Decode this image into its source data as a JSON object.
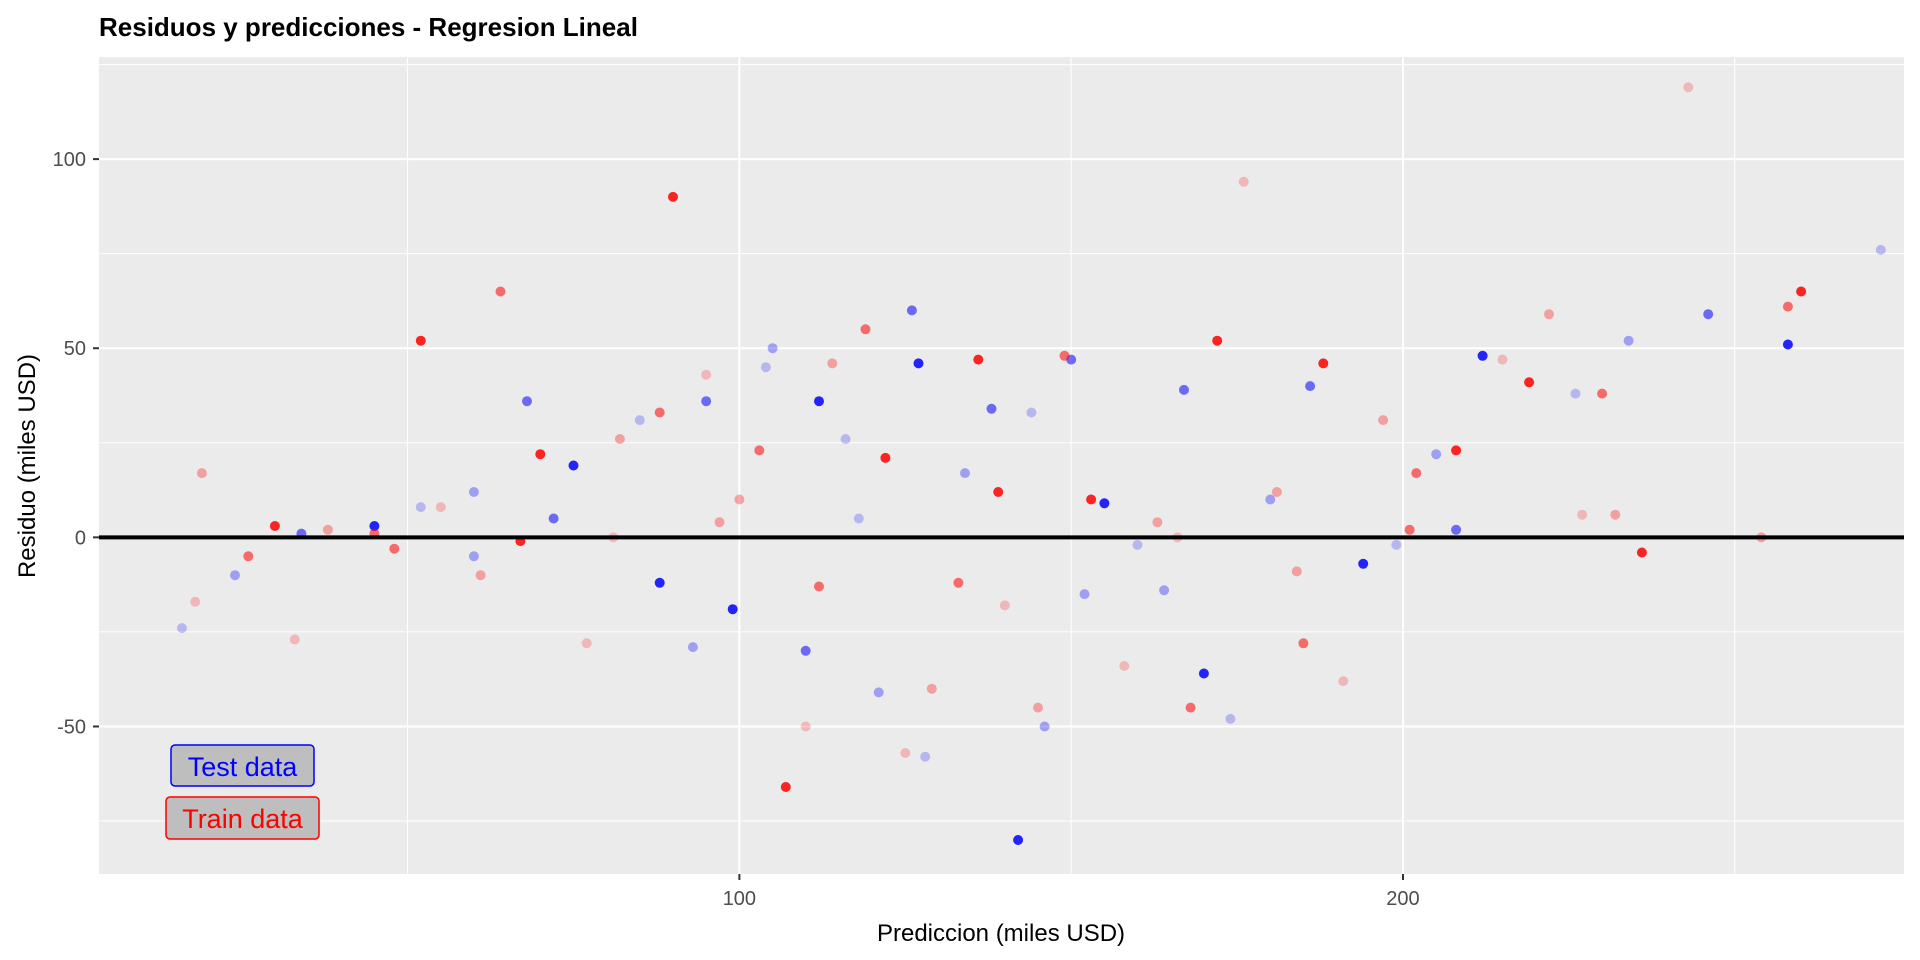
{
  "chart_data": {
    "type": "scatter",
    "title": "Residuos y predicciones - Regresion Lineal",
    "xlabel": "Prediccion (miles USD)",
    "ylabel": "Residuo (miles USD)",
    "xlim": [
      3.5,
      275.5
    ],
    "ylim": [
      -89,
      127
    ],
    "x_ticks": [
      100,
      200
    ],
    "y_ticks": [
      -50,
      0,
      50,
      100
    ],
    "x_minor_ticks": [
      50,
      150,
      250
    ],
    "y_minor_ticks": [
      -75,
      -25,
      25,
      75,
      125
    ],
    "grid": true,
    "reference_line": 0,
    "legend_labels": [
      "Test data",
      "Train data"
    ],
    "legend_position": "bottom-left",
    "colors": {
      "test": "#0000ff",
      "train": "#ff0000",
      "panel_background": "#ebebeb",
      "grid": "#ffffff",
      "legend_fill": "#bebebe"
    },
    "series": [
      {
        "name": "Test data",
        "points": [
          [
            16,
            -24
          ],
          [
            24,
            -10
          ],
          [
            34,
            1
          ],
          [
            45,
            3
          ],
          [
            52,
            8
          ],
          [
            60,
            12
          ],
          [
            68,
            36
          ],
          [
            75,
            19
          ],
          [
            85,
            31
          ],
          [
            93,
            -29
          ],
          [
            95,
            36
          ],
          [
            99,
            -19
          ],
          [
            104,
            45
          ],
          [
            105,
            50
          ],
          [
            110,
            -30
          ],
          [
            112,
            36
          ],
          [
            116,
            26
          ],
          [
            121,
            -41
          ],
          [
            126,
            60
          ],
          [
            127,
            46
          ],
          [
            128,
            -58
          ],
          [
            134,
            17
          ],
          [
            138,
            34
          ],
          [
            142,
            -80
          ],
          [
            144,
            33
          ],
          [
            146,
            -50
          ],
          [
            150,
            47
          ],
          [
            155,
            9
          ],
          [
            160,
            -2
          ],
          [
            164,
            -14
          ],
          [
            167,
            39
          ],
          [
            170,
            -36
          ],
          [
            174,
            -48
          ],
          [
            180,
            10
          ],
          [
            186,
            40
          ],
          [
            194,
            -7
          ],
          [
            199,
            -2
          ],
          [
            205,
            22
          ],
          [
            208,
            2
          ],
          [
            212,
            48
          ],
          [
            226,
            38
          ],
          [
            234,
            52
          ],
          [
            246,
            59
          ],
          [
            258,
            51
          ],
          [
            272,
            76
          ],
          [
            60,
            -5
          ],
          [
            72,
            5
          ],
          [
            88,
            -12
          ],
          [
            118,
            5
          ],
          [
            152,
            -15
          ]
        ]
      },
      {
        "name": "Train data",
        "points": [
          [
            18,
            -17
          ],
          [
            19,
            17
          ],
          [
            26,
            -5
          ],
          [
            30,
            3
          ],
          [
            33,
            -27
          ],
          [
            38,
            2
          ],
          [
            45,
            1
          ],
          [
            52,
            52
          ],
          [
            55,
            8
          ],
          [
            61,
            -10
          ],
          [
            64,
            65
          ],
          [
            70,
            22
          ],
          [
            77,
            -28
          ],
          [
            82,
            26
          ],
          [
            88,
            33
          ],
          [
            90,
            90
          ],
          [
            95,
            43
          ],
          [
            100,
            10
          ],
          [
            103,
            23
          ],
          [
            107,
            -66
          ],
          [
            110,
            -50
          ],
          [
            114,
            46
          ],
          [
            119,
            55
          ],
          [
            122,
            21
          ],
          [
            125,
            -57
          ],
          [
            129,
            -40
          ],
          [
            133,
            -12
          ],
          [
            136,
            47
          ],
          [
            140,
            -18
          ],
          [
            145,
            -45
          ],
          [
            149,
            48
          ],
          [
            153,
            10
          ],
          [
            158,
            -34
          ],
          [
            163,
            4
          ],
          [
            168,
            -45
          ],
          [
            172,
            52
          ],
          [
            176,
            94
          ],
          [
            181,
            12
          ],
          [
            185,
            -28
          ],
          [
            188,
            46
          ],
          [
            191,
            -38
          ],
          [
            197,
            31
          ],
          [
            202,
            17
          ],
          [
            208,
            23
          ],
          [
            215,
            47
          ],
          [
            222,
            59
          ],
          [
            230,
            38
          ],
          [
            236,
            -4
          ],
          [
            243,
            119
          ],
          [
            254,
            0
          ],
          [
            258,
            61
          ],
          [
            260,
            65
          ],
          [
            227,
            6
          ],
          [
            232,
            6
          ],
          [
            48,
            -3
          ],
          [
            67,
            -1
          ],
          [
            81,
            0
          ],
          [
            97,
            4
          ],
          [
            112,
            -13
          ],
          [
            139,
            12
          ],
          [
            166,
            0
          ],
          [
            184,
            -9
          ],
          [
            201,
            2
          ],
          [
            219,
            41
          ]
        ]
      }
    ]
  }
}
